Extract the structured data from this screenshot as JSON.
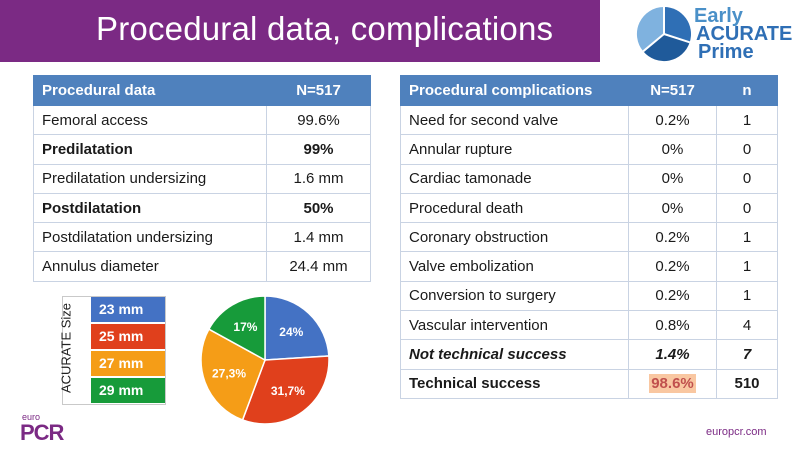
{
  "title": "Procedural data, complications",
  "logo": {
    "line1": "Early",
    "line2": "ACURATE",
    "line3": "Prime"
  },
  "left_table": {
    "headers": [
      "Procedural data",
      "N=517"
    ],
    "rows": [
      {
        "label": "Femoral access",
        "value": "99.6%",
        "bold": false
      },
      {
        "label": "Predilatation",
        "value": "99%",
        "bold": true
      },
      {
        "label": "Predilatation undersizing",
        "value": "1.6 mm",
        "bold": false
      },
      {
        "label": "Postdilatation",
        "value": "50%",
        "bold": true
      },
      {
        "label": "Postdilatation undersizing",
        "value": "1.4 mm",
        "bold": false
      },
      {
        "label": "Annulus diameter",
        "value": "24.4 mm",
        "bold": false
      }
    ]
  },
  "right_table": {
    "headers": [
      "Procedural complications",
      "N=517",
      "n"
    ],
    "rows": [
      {
        "label": "Need for second valve",
        "pct": "0.2%",
        "n": "1",
        "style": "normal"
      },
      {
        "label": "Annular rupture",
        "pct": "0%",
        "n": "0",
        "style": "normal"
      },
      {
        "label": "Cardiac tamonade",
        "pct": "0%",
        "n": "0",
        "style": "normal"
      },
      {
        "label": "Procedural death",
        "pct": "0%",
        "n": "0",
        "style": "normal"
      },
      {
        "label": "Coronary obstruction",
        "pct": "0.2%",
        "n": "1",
        "style": "normal"
      },
      {
        "label": "Valve embolization",
        "pct": "0.2%",
        "n": "1",
        "style": "normal"
      },
      {
        "label": "Conversion to surgery",
        "pct": "0.2%",
        "n": "1",
        "style": "normal"
      },
      {
        "label": "Vascular intervention",
        "pct": "0.8%",
        "n": "4",
        "style": "normal"
      },
      {
        "label": "Not technical success",
        "pct": "1.4%",
        "n": "7",
        "style": "bold-italic"
      },
      {
        "label": "Technical success",
        "pct": "98.6%",
        "n": "510",
        "style": "bold-highlight"
      }
    ]
  },
  "size_legend": {
    "axis_label": "ACURATE Size",
    "items": [
      {
        "label": "23 mm",
        "color": "#4472c4"
      },
      {
        "label": "25 mm",
        "color": "#e0401c"
      },
      {
        "label": "27 mm",
        "color": "#f59d17"
      },
      {
        "label": "29 mm",
        "color": "#179b3a"
      }
    ]
  },
  "chart_data": {
    "type": "pie",
    "slices": [
      {
        "category": "23 mm",
        "value": 24.0,
        "label": "24%",
        "color": "#4472c4"
      },
      {
        "category": "25 mm",
        "value": 31.7,
        "label": "31,7%",
        "color": "#e0401c"
      },
      {
        "category": "27 mm",
        "value": 27.3,
        "label": "27,3%",
        "color": "#f59d17"
      },
      {
        "category": "29 mm",
        "value": 17.0,
        "label": "17%",
        "color": "#179b3a"
      }
    ]
  },
  "footer": {
    "euro": "euro",
    "pcr": "PCR",
    "website": "europcr.com"
  },
  "colors": {
    "accent_purple": "#7b2a84",
    "table_header_blue": "#4f81bd",
    "highlight": "#f9c7a1"
  }
}
